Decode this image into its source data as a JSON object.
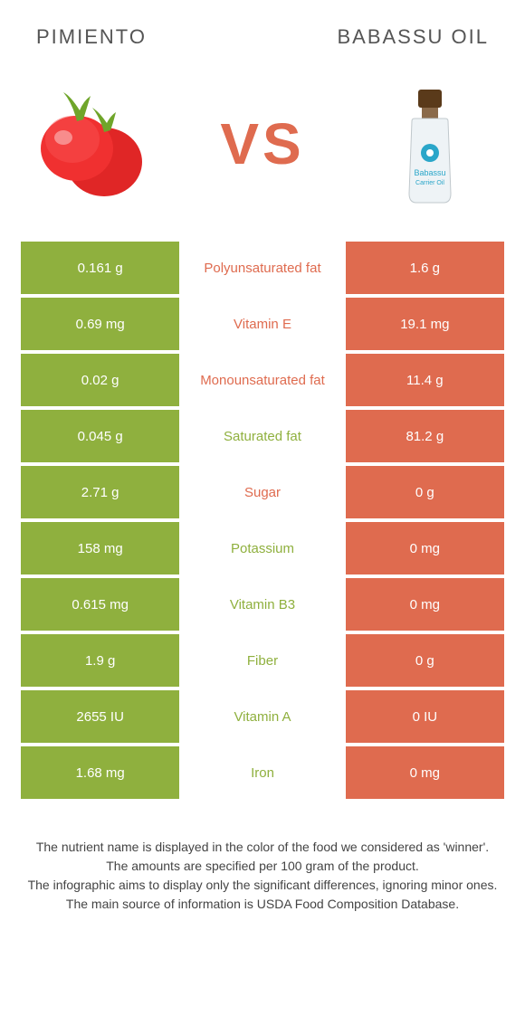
{
  "header": {
    "left_title": "Pimiento",
    "right_title": "Babassu oil"
  },
  "vs_label": "VS",
  "colors": {
    "left": "#8fb03e",
    "right": "#df6b4f",
    "pepper_red": "#e02626",
    "pepper_stem": "#6fa52a",
    "bottle_body": "#eef3f6",
    "bottle_cap": "#5a3a1a",
    "bottle_label": "#2aa6c9"
  },
  "rows": [
    {
      "left": "0.161 g",
      "label": "Polyunsaturated fat",
      "right": "1.6 g",
      "winner": "right"
    },
    {
      "left": "0.69 mg",
      "label": "Vitamin E",
      "right": "19.1 mg",
      "winner": "right"
    },
    {
      "left": "0.02 g",
      "label": "Monounsaturated fat",
      "right": "11.4 g",
      "winner": "right"
    },
    {
      "left": "0.045 g",
      "label": "Saturated fat",
      "right": "81.2 g",
      "winner": "left"
    },
    {
      "left": "2.71 g",
      "label": "Sugar",
      "right": "0 g",
      "winner": "right"
    },
    {
      "left": "158 mg",
      "label": "Potassium",
      "right": "0 mg",
      "winner": "left"
    },
    {
      "left": "0.615 mg",
      "label": "Vitamin B3",
      "right": "0 mg",
      "winner": "left"
    },
    {
      "left": "1.9 g",
      "label": "Fiber",
      "right": "0 g",
      "winner": "left"
    },
    {
      "left": "2655 IU",
      "label": "Vitamin A",
      "right": "0 IU",
      "winner": "left"
    },
    {
      "left": "1.68 mg",
      "label": "Iron",
      "right": "0 mg",
      "winner": "left"
    }
  ],
  "footnotes": [
    "The nutrient name is displayed in the color of the food we considered as 'winner'.",
    "The amounts are specified per 100 gram of the product.",
    "The infographic aims to display only the significant differences, ignoring minor ones.",
    "The main source of information is USDA Food Composition Database."
  ],
  "bottle_text": {
    "line1": "Babassu",
    "line2": "Carrier Oil"
  }
}
